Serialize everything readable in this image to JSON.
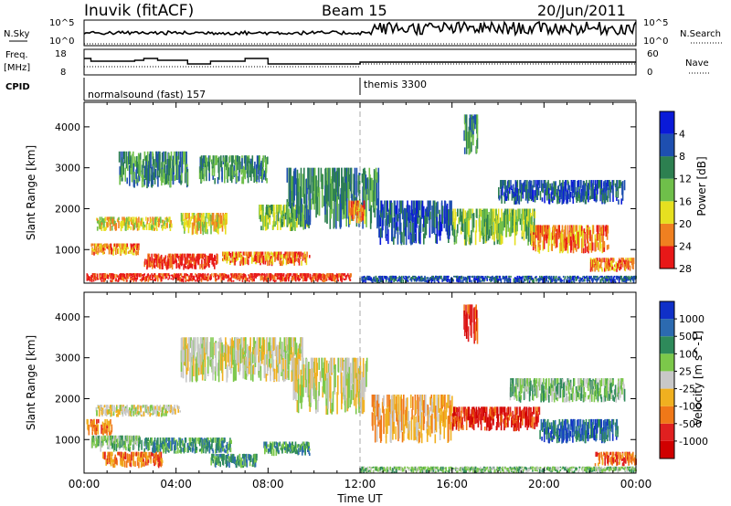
{
  "header": {
    "station": "Inuvik  (fitACF)",
    "beam": "Beam 15",
    "date": "20/Jun/2011"
  },
  "top_panels": {
    "nsky_label": "N.Sky",
    "nsearch_label": "N.Search",
    "nsky_ticks": [
      "10^5",
      "10^0"
    ],
    "nsearch_ticks": [
      "10^5",
      "10^0"
    ],
    "freq_label": "Freq.",
    "freq_unit": "[MHz]",
    "freq_ticks": [
      "18",
      "8"
    ],
    "nave_label": "Nave",
    "nave_ticks": [
      "60",
      "0"
    ],
    "cpid_label": "CPID",
    "cpid_segments": [
      {
        "name": "normalsound (fast)",
        "id": "157",
        "start_hour": 0,
        "end_hour": 12
      },
      {
        "name": "themis",
        "id": "3300",
        "start_hour": 12,
        "end_hour": 24
      }
    ]
  },
  "chart_data": [
    {
      "type": "heatmap",
      "title": "",
      "xlabel": "",
      "ylabel": "Slant Range [km]",
      "xlim": [
        0,
        24
      ],
      "ylim": [
        180,
        4600
      ],
      "yticks": [
        1000,
        2000,
        3000,
        4000
      ],
      "colorbar": {
        "label": "Power [dB]",
        "ticks": [
          "4",
          "8",
          "12",
          "16",
          "20",
          "24",
          "28"
        ],
        "colors": [
          "#0a1ad8",
          "#1e4fb0",
          "#2d8050",
          "#6fbf4a",
          "#e6e020",
          "#f08020",
          "#e81818"
        ]
      },
      "regions": [
        {
          "t0": 0.1,
          "t1": 11.6,
          "r0": 200,
          "r1": 420,
          "level": 6
        },
        {
          "t0": 0.3,
          "t1": 2.4,
          "r0": 850,
          "r1": 1150,
          "level": 5
        },
        {
          "t0": 2.6,
          "t1": 5.8,
          "r0": 500,
          "r1": 900,
          "level": 6
        },
        {
          "t0": 6.0,
          "t1": 9.8,
          "r0": 600,
          "r1": 950,
          "level": 5
        },
        {
          "t0": 0.5,
          "t1": 3.8,
          "r0": 1450,
          "r1": 1800,
          "level": 4
        },
        {
          "t0": 4.2,
          "t1": 6.2,
          "r0": 1350,
          "r1": 1900,
          "level": 4
        },
        {
          "t0": 7.6,
          "t1": 9.8,
          "r0": 1450,
          "r1": 2100,
          "level": 3
        },
        {
          "t0": 1.5,
          "t1": 4.5,
          "r0": 2500,
          "r1": 3400,
          "level": 2
        },
        {
          "t0": 5.0,
          "t1": 8.0,
          "r0": 2600,
          "r1": 3300,
          "level": 2
        },
        {
          "t0": 8.8,
          "t1": 12.8,
          "r0": 1500,
          "r1": 3000,
          "level": 2
        },
        {
          "t0": 11.5,
          "t1": 12.2,
          "r0": 1600,
          "r1": 2200,
          "level": 5
        },
        {
          "t0": 12.8,
          "t1": 16.0,
          "r0": 1100,
          "r1": 2200,
          "level": 1
        },
        {
          "t0": 16.0,
          "t1": 19.6,
          "r0": 1100,
          "r1": 2000,
          "level": 3
        },
        {
          "t0": 19.4,
          "t1": 22.8,
          "r0": 900,
          "r1": 1600,
          "level": 5
        },
        {
          "t0": 22.0,
          "t1": 23.9,
          "r0": 450,
          "r1": 800,
          "level": 5
        },
        {
          "t0": 12.0,
          "t1": 24.0,
          "r0": 180,
          "r1": 360,
          "level": 1
        },
        {
          "t0": 16.5,
          "t1": 17.1,
          "r0": 3300,
          "r1": 4300,
          "level": 2
        },
        {
          "t0": 18.0,
          "t1": 23.5,
          "r0": 2100,
          "r1": 2700,
          "level": 1
        }
      ]
    },
    {
      "type": "heatmap",
      "title": "",
      "xlabel": "Time UT",
      "ylabel": "Slant Range [km]",
      "xlim": [
        0,
        24
      ],
      "ylim": [
        180,
        4600
      ],
      "yticks": [
        1000,
        2000,
        3000,
        4000
      ],
      "xticks": [
        "00:00",
        "04:00",
        "08:00",
        "12:00",
        "16:00",
        "20:00",
        "00:00"
      ],
      "colorbar": {
        "label": "Velocity [m s^-1]",
        "ticks": [
          "1000",
          "500",
          "100",
          "25",
          "-25",
          "-100",
          "-500",
          "-1000"
        ],
        "colors": [
          "#1030c8",
          "#2c6ab0",
          "#2e8a5a",
          "#7cc84a",
          "#c8c8c8",
          "#f0b020",
          "#f07818",
          "#e02020",
          "#d00000"
        ]
      },
      "regions": [
        {
          "t0": 0.5,
          "t1": 4.2,
          "r0": 1550,
          "r1": 1850,
          "level": 4
        },
        {
          "t0": 4.2,
          "t1": 9.5,
          "r0": 2400,
          "r1": 3500,
          "level": 4
        },
        {
          "t0": 9.0,
          "t1": 12.3,
          "r0": 1600,
          "r1": 3000,
          "level": 4
        },
        {
          "t0": 0.3,
          "t1": 2.5,
          "r0": 700,
          "r1": 1100,
          "level": 3
        },
        {
          "t0": 2.6,
          "t1": 6.4,
          "r0": 650,
          "r1": 1050,
          "level": 2
        },
        {
          "t0": 5.5,
          "t1": 7.5,
          "r0": 300,
          "r1": 650,
          "level": 2
        },
        {
          "t0": 7.8,
          "t1": 9.8,
          "r0": 600,
          "r1": 950,
          "level": 2
        },
        {
          "t0": 0.8,
          "t1": 3.4,
          "r0": 300,
          "r1": 700,
          "level": 6
        },
        {
          "t0": 0.1,
          "t1": 1.2,
          "r0": 1100,
          "r1": 1500,
          "level": 6
        },
        {
          "t0": 12.5,
          "t1": 16.0,
          "r0": 900,
          "r1": 2100,
          "level": 5
        },
        {
          "t0": 16.0,
          "t1": 19.8,
          "r0": 1200,
          "r1": 1800,
          "level": 7
        },
        {
          "t0": 19.8,
          "t1": 23.2,
          "r0": 900,
          "r1": 1500,
          "level": 1
        },
        {
          "t0": 22.2,
          "t1": 24.0,
          "r0": 350,
          "r1": 700,
          "level": 6
        },
        {
          "t0": 12.0,
          "t1": 24.0,
          "r0": 180,
          "r1": 340,
          "level": 3
        },
        {
          "t0": 18.5,
          "t1": 23.5,
          "r0": 1900,
          "r1": 2500,
          "level": 3
        },
        {
          "t0": 16.5,
          "t1": 17.1,
          "r0": 3300,
          "r1": 4300,
          "level": 7
        }
      ]
    }
  ]
}
